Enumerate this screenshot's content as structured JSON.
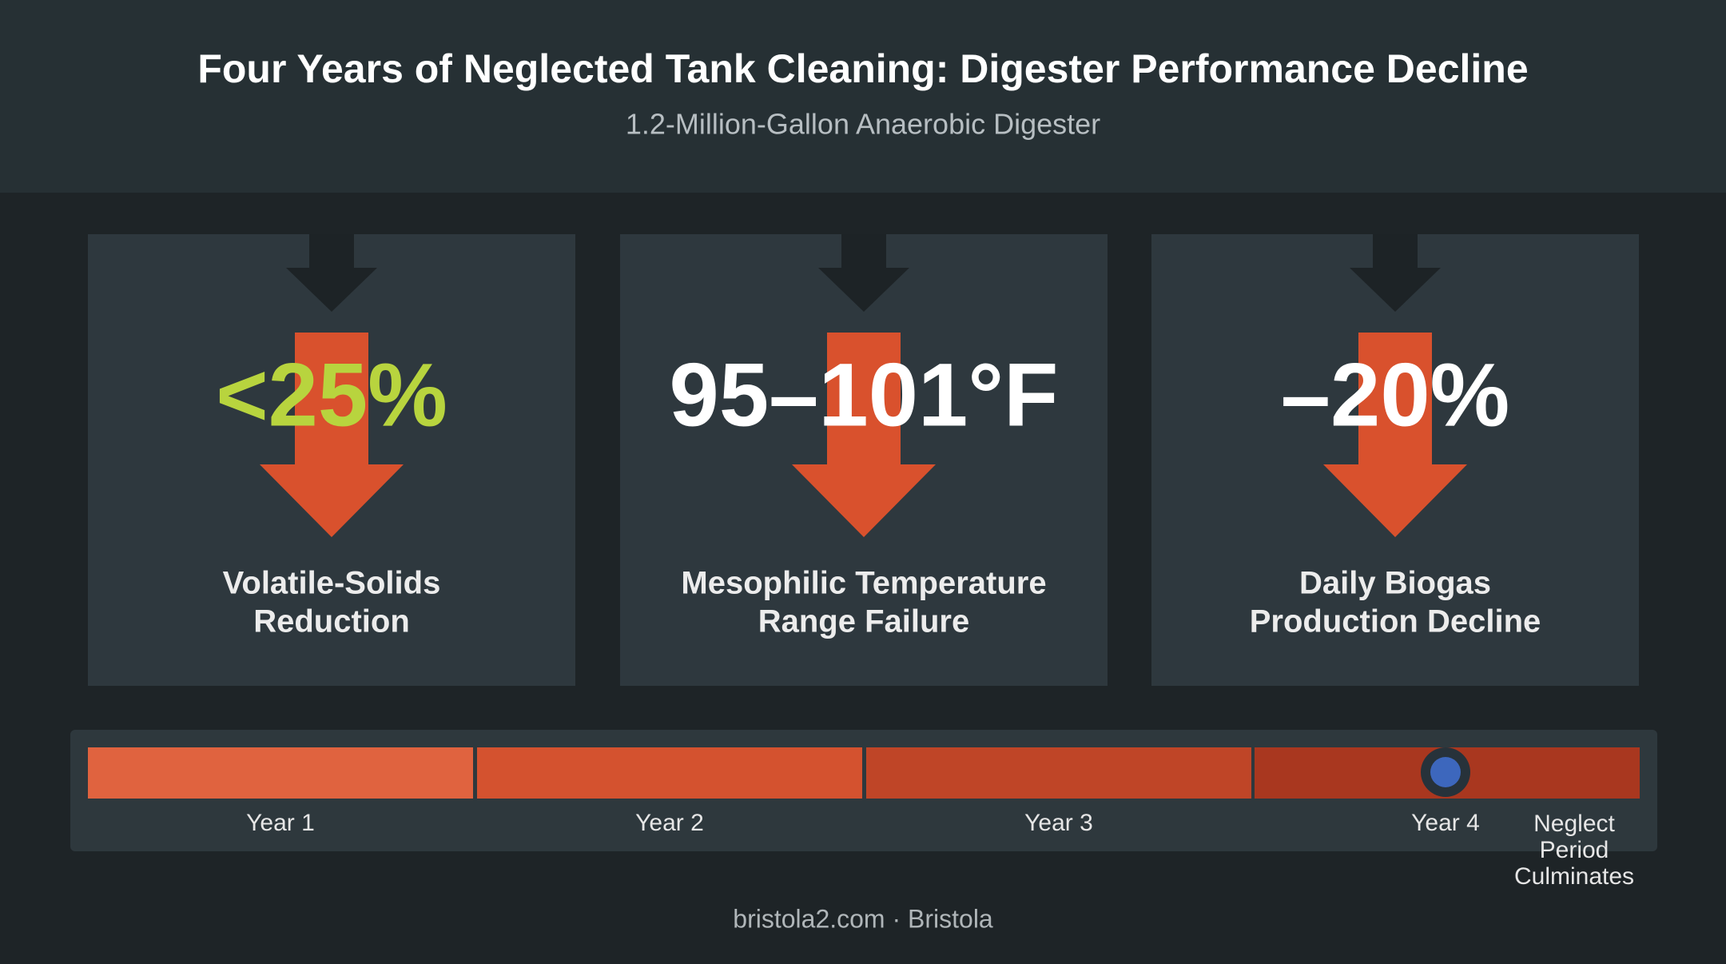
{
  "header": {
    "title": "Four Years of Neglected Tank Cleaning: Digester Performance Decline",
    "subtitle": "1.2-Million-Gallon Anaerobic Digester"
  },
  "cards": [
    {
      "value": "<25%",
      "label": [
        "Volatile-Solids",
        "Reduction"
      ]
    },
    {
      "value": "95–101°F",
      "label": [
        "Mesophilic Temperature",
        "Range Failure"
      ]
    },
    {
      "value": "–20%",
      "label": [
        "Daily Biogas",
        "Production Decline"
      ]
    }
  ],
  "timeline": {
    "segments": [
      "Year 1",
      "Year 2",
      "Year 3",
      "Year 4"
    ],
    "end_label": [
      "Neglect",
      "Period",
      "Culminates"
    ]
  },
  "footer": "bristola2.com · Bristola"
}
